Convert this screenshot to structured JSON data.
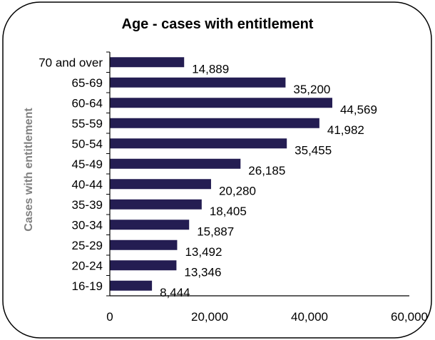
{
  "chart_data": {
    "type": "bar",
    "orientation": "horizontal",
    "title": "Age - cases with entitlement",
    "ylabel": "Cases with entitlement",
    "xlabel": "",
    "xlim": [
      0,
      60000
    ],
    "xticks": [
      0,
      20000,
      40000,
      60000
    ],
    "xtick_labels": [
      "0",
      "20,000",
      "40,000",
      "60,000"
    ],
    "grid": false,
    "categories": [
      "70 and over",
      "65-69",
      "60-64",
      "55-59",
      "50-54",
      "45-49",
      "40-44",
      "35-39",
      "30-34",
      "25-29",
      "20-24",
      "16-19"
    ],
    "values": [
      14889,
      35200,
      44569,
      41982,
      35455,
      26185,
      20280,
      18405,
      15887,
      13492,
      13346,
      8444
    ],
    "value_labels": [
      "14,889",
      "35,200",
      "44,569",
      "41,982",
      "35,455",
      "26,185",
      "20,280",
      "18,405",
      "15,887",
      "13,492",
      "13,346",
      "8,444"
    ],
    "bar_color": "#241d52",
    "axis_color": "#000000",
    "frame_color": "#000000"
  }
}
